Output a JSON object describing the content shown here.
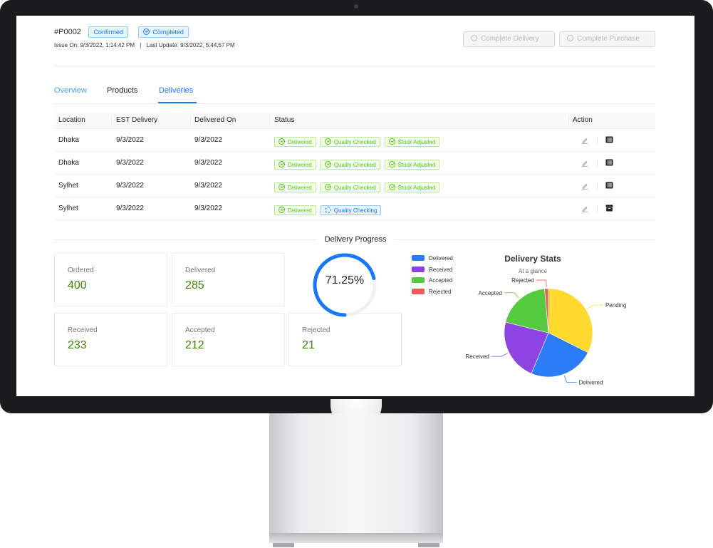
{
  "header": {
    "order_id": "#P0002",
    "tags": [
      {
        "label": "Confirmed",
        "icon": ""
      },
      {
        "label": "Completed",
        "icon": "check-circle-icon"
      }
    ],
    "issue_on_label": "Issue On:",
    "issue_on": "9/3/2022, 1:14:42 PM",
    "separator": "|",
    "last_update_label": "Last Update:",
    "last_update": "9/3/2022, 5:44:57 PM",
    "buttons": [
      {
        "label": "Complete Delivery",
        "icon": "check-circle-icon",
        "disabled": true
      },
      {
        "label": "Complete Purchase",
        "icon": "check-circle-icon",
        "disabled": true
      }
    ]
  },
  "tabs": [
    {
      "label": "Overview",
      "active": false
    },
    {
      "label": "Products",
      "active": false
    },
    {
      "label": "Deliveries",
      "active": true
    }
  ],
  "table": {
    "columns": [
      "Location",
      "EST Delivery",
      "Delivered On",
      "Status",
      "Action"
    ],
    "rows": [
      {
        "location": "Dhaka",
        "est": "9/3/2022",
        "delivered_on": "9/3/2022",
        "statuses": [
          {
            "label": "Delivered",
            "kind": "green"
          },
          {
            "label": "Quality Checked",
            "kind": "green"
          },
          {
            "label": "Stock Adjusted",
            "kind": "green"
          }
        ],
        "action_icons": [
          "edit-icon",
          "list-icon"
        ]
      },
      {
        "location": "Dhaka",
        "est": "9/3/2022",
        "delivered_on": "9/3/2022",
        "statuses": [
          {
            "label": "Delivered",
            "kind": "green"
          },
          {
            "label": "Quality Checked",
            "kind": "green"
          },
          {
            "label": "Stock Adjusted",
            "kind": "green"
          }
        ],
        "action_icons": [
          "edit-icon",
          "list-icon"
        ]
      },
      {
        "location": "Sylhet",
        "est": "9/3/2022",
        "delivered_on": "9/3/2022",
        "statuses": [
          {
            "label": "Delivered",
            "kind": "green"
          },
          {
            "label": "Quality Checked",
            "kind": "green"
          },
          {
            "label": "Stock Adjusted",
            "kind": "green"
          }
        ],
        "action_icons": [
          "edit-icon",
          "list-icon"
        ]
      },
      {
        "location": "Sylhet",
        "est": "9/3/2022",
        "delivered_on": "9/3/2022",
        "statuses": [
          {
            "label": "Delivered",
            "kind": "green"
          },
          {
            "label": "Quality Checking",
            "kind": "blue"
          }
        ],
        "action_icons": [
          "edit-icon",
          "archive-icon"
        ]
      }
    ]
  },
  "progress": {
    "title": "Delivery Progress",
    "cards": [
      {
        "label": "Ordered",
        "value": "400"
      },
      {
        "label": "Delivered",
        "value": "285"
      },
      {
        "label": "Received",
        "value": "233"
      },
      {
        "label": "Accepted",
        "value": "212"
      },
      {
        "label": "Rejected",
        "value": "21"
      }
    ],
    "gauge": {
      "text": "71.25%",
      "percent": 71.25
    }
  },
  "colors": {
    "accent": "#1677ff",
    "stat_value": "#3f8600",
    "delivered": "#2b7cf6",
    "received": "#8e44e0",
    "accepted": "#55c940",
    "rejected": "#f05a5a",
    "pending": "#ffd92e"
  },
  "chart_data": {
    "type": "pie",
    "title": "Delivery Stats",
    "subtitle": "At a glance",
    "legend": [
      "Delivered",
      "Received",
      "Accepted",
      "Rejected"
    ],
    "slices": [
      {
        "name": "Pending",
        "value": 115,
        "color": "#ffd92e"
      },
      {
        "name": "Delivered",
        "value": 85,
        "color": "#2b7cf6"
      },
      {
        "name": "Received",
        "value": 80,
        "color": "#8e44e0"
      },
      {
        "name": "Accepted",
        "value": 70,
        "color": "#55c940"
      },
      {
        "name": "Rejected",
        "value": 5,
        "color": "#f05a5a"
      }
    ]
  }
}
